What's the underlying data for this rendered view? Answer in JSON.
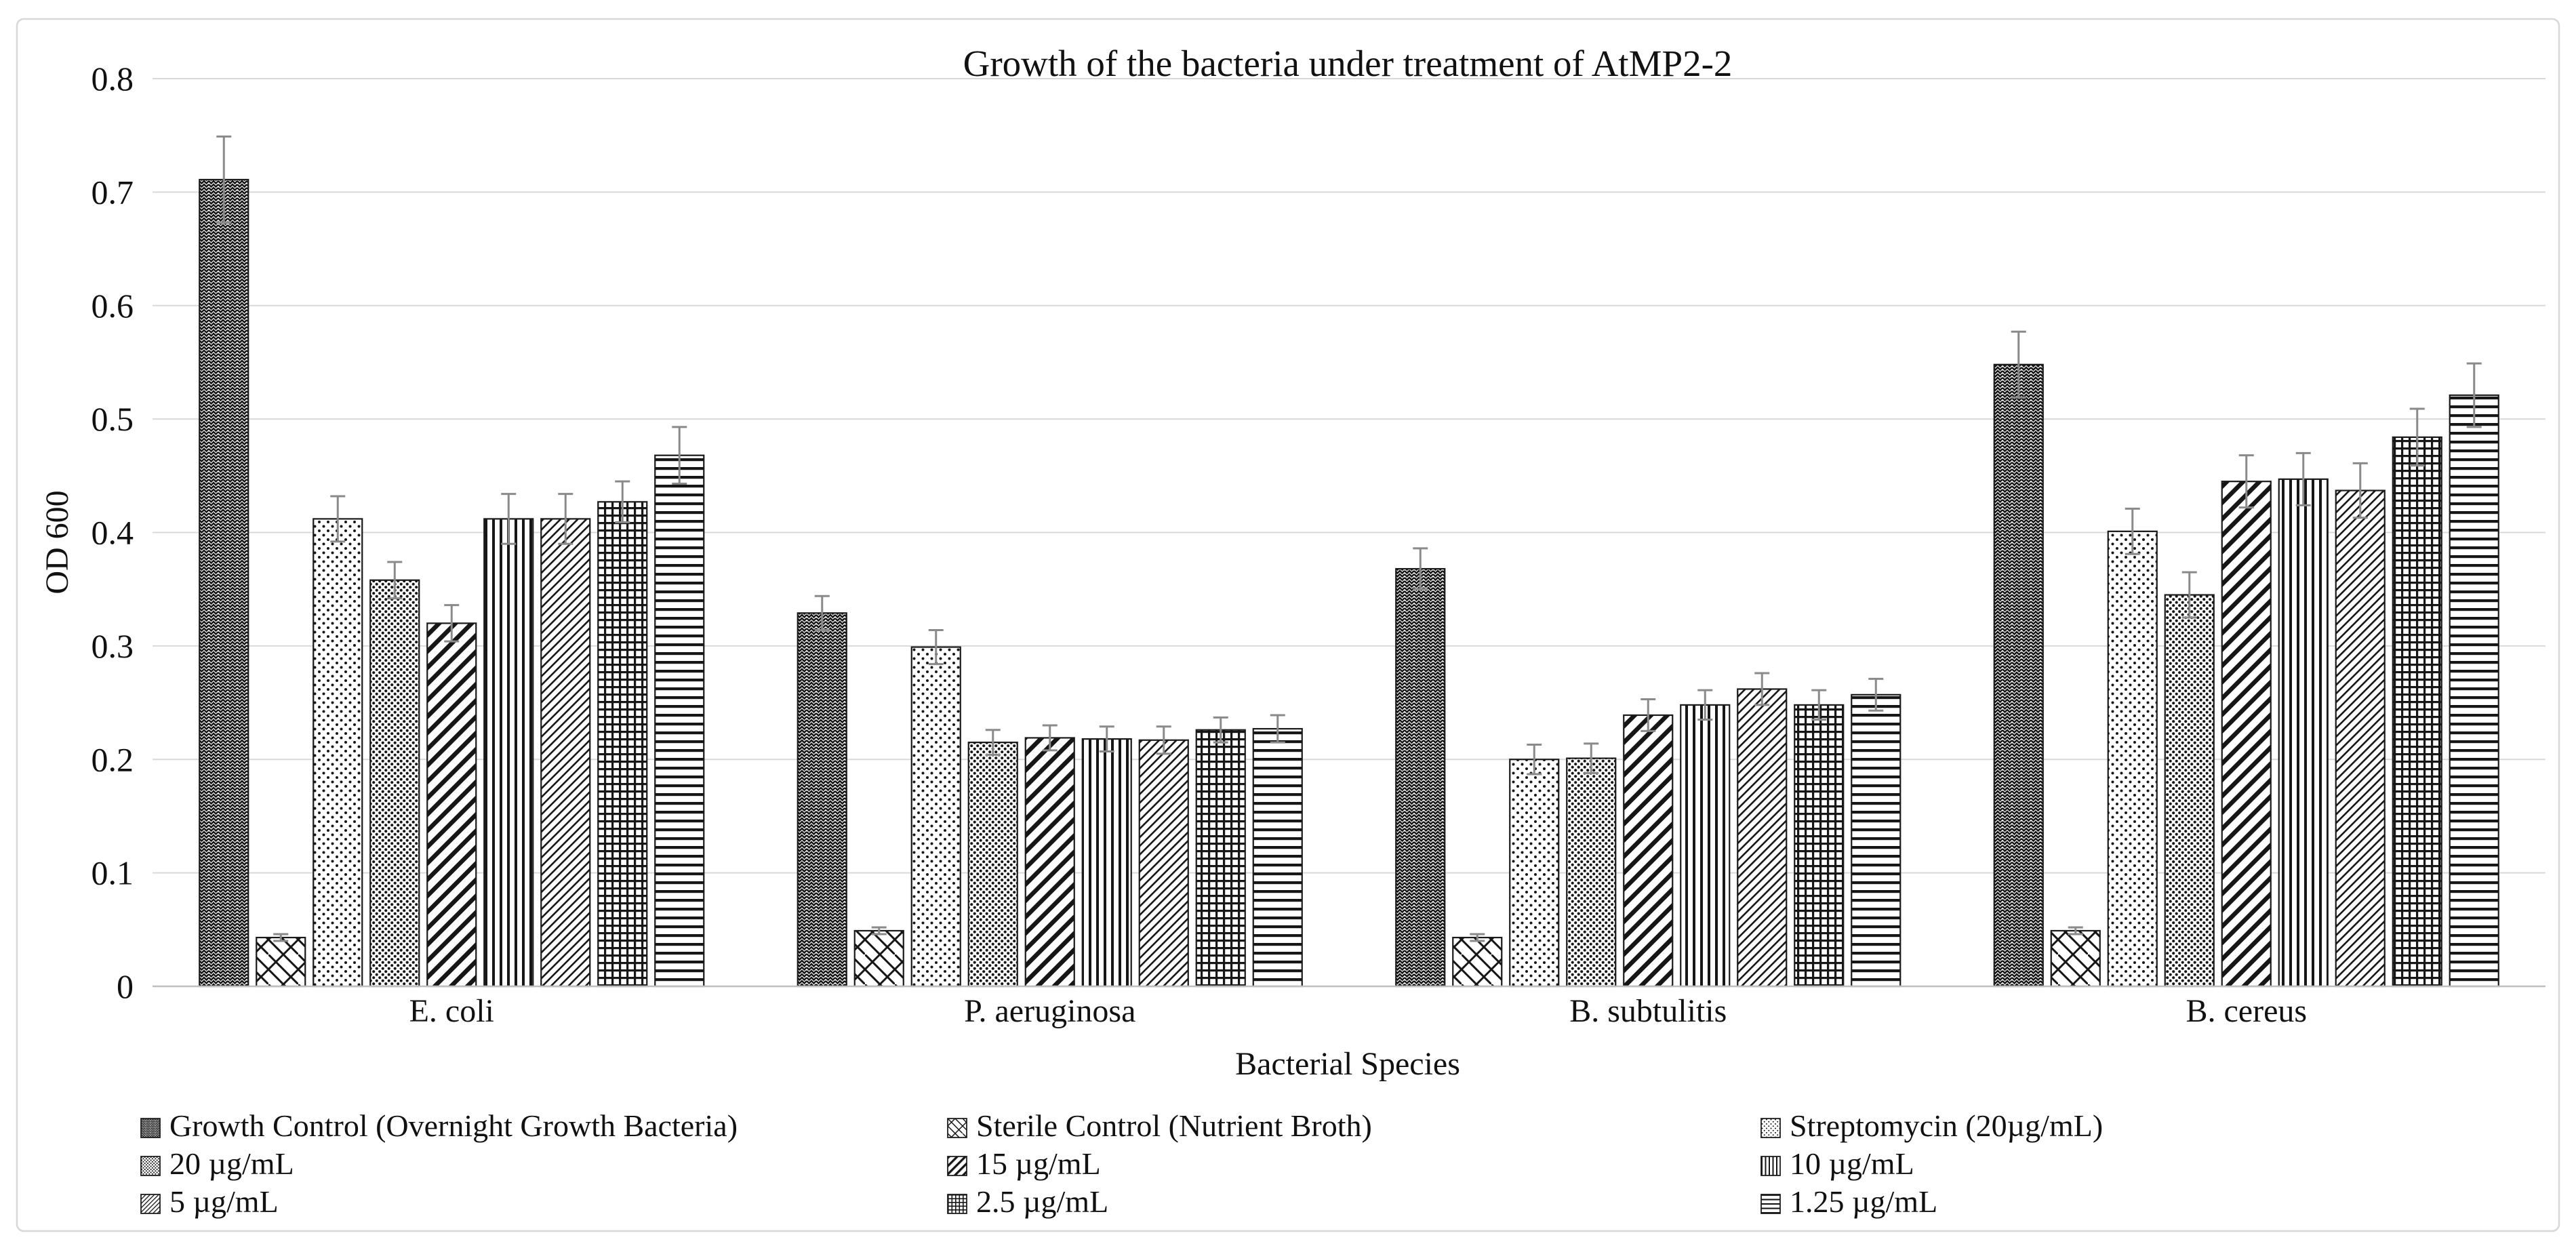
{
  "window": {
    "background": "#ffffff",
    "card_border_color": "#d7d7dc",
    "gridline_color": "#d9d9d9",
    "axisline_color": "#bfbfbf",
    "error_bar_color": "#8a8a8a",
    "bar_outline_color": "#1a1a1a"
  },
  "chart_data": {
    "type": "bar",
    "title": "Growth of the bacteria under treatment of AtMP2-2",
    "xlabel": "Bacterial Species",
    "ylabel": "OD 600",
    "ylim": [
      0,
      0.8
    ],
    "ytick_labels": [
      "0",
      "0.1",
      "0.2",
      "0.3",
      "0.4",
      "0.5",
      "0.6",
      "0.7",
      "0.8"
    ],
    "grid": "horizontal-gridlines-on",
    "legend_position": "bottom",
    "legend_columns": 3,
    "categories": [
      "E. coli",
      "P. aeruginosa",
      "B. subtulitis",
      "B. cereus"
    ],
    "series": [
      {
        "name": "Growth Control (Overnight Growth Bacteria)",
        "pattern": "herringbone",
        "values": [
          0.711,
          0.329,
          0.368,
          0.548
        ],
        "errors": [
          0.038,
          0.015,
          0.018,
          0.029
        ]
      },
      {
        "name": "Sterile Control (Nutrient Broth)",
        "pattern": "diagonal-brick",
        "values": [
          0.043,
          0.049,
          0.043,
          0.049
        ],
        "errors": [
          0.003,
          0.003,
          0.003,
          0.003
        ]
      },
      {
        "name": "Streptomycin (20µg/mL)",
        "pattern": "sparse-dots",
        "values": [
          0.412,
          0.299,
          0.2,
          0.401
        ],
        "errors": [
          0.02,
          0.015,
          0.013,
          0.02
        ]
      },
      {
        "name": "20 µg/mL",
        "pattern": "dense-dots",
        "values": [
          0.358,
          0.215,
          0.201,
          0.345
        ],
        "errors": [
          0.016,
          0.011,
          0.013,
          0.02
        ]
      },
      {
        "name": "15 µg/mL",
        "pattern": "wide-upward-diagonal",
        "values": [
          0.32,
          0.219,
          0.239,
          0.445
        ],
        "errors": [
          0.016,
          0.011,
          0.014,
          0.023
        ]
      },
      {
        "name": "10 µg/mL",
        "pattern": "vertical-lines",
        "values": [
          0.412,
          0.218,
          0.248,
          0.447
        ],
        "errors": [
          0.022,
          0.011,
          0.013,
          0.023
        ]
      },
      {
        "name": "5 µg/mL",
        "pattern": "light-upward-diagonal",
        "values": [
          0.412,
          0.217,
          0.262,
          0.437
        ],
        "errors": [
          0.022,
          0.012,
          0.014,
          0.024
        ]
      },
      {
        "name": "2.5 µg/mL",
        "pattern": "grid",
        "values": [
          0.427,
          0.226,
          0.248,
          0.484
        ],
        "errors": [
          0.018,
          0.011,
          0.013,
          0.025
        ]
      },
      {
        "name": "1.25 µg/mL",
        "pattern": "horizontal-lines",
        "values": [
          0.468,
          0.227,
          0.257,
          0.521
        ],
        "errors": [
          0.025,
          0.012,
          0.014,
          0.028
        ]
      }
    ]
  }
}
